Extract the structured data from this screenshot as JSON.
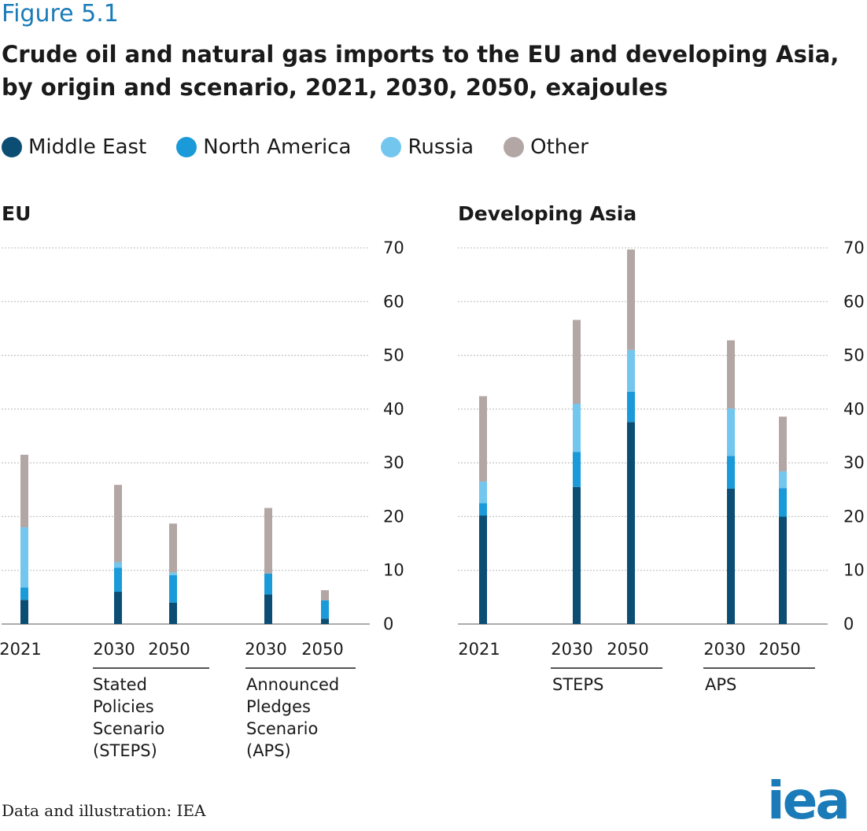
{
  "figure_label": "Figure 5.1",
  "title": "Crude oil and natural gas imports to the EU and developing Asia, by origin and scenario, 2021, 2030, 2050, exajoules",
  "legend": [
    {
      "name": "Middle East",
      "color": "#0c4d74"
    },
    {
      "name": "North America",
      "color": "#1a9ad8"
    },
    {
      "name": "Russia",
      "color": "#73c6ee"
    },
    {
      "name": "Other",
      "color": "#b3a7a5"
    }
  ],
  "source": "Data and illustration: IEA",
  "logo": "iea",
  "chart_data": [
    {
      "type": "bar",
      "stacked": true,
      "title": "EU",
      "categories": [
        "2021",
        "2030",
        "2050",
        "2030",
        "2050"
      ],
      "groups": [
        {
          "label": "",
          "categories": [
            "2021"
          ]
        },
        {
          "label": [
            "Stated",
            "Policies",
            "Scenario",
            "(STEPS)"
          ],
          "categories": [
            "2030",
            "2050"
          ]
        },
        {
          "label": [
            "Announced",
            "Pledges",
            "Scenario",
            "(APS)"
          ],
          "categories": [
            "2030",
            "2050"
          ]
        }
      ],
      "series": [
        {
          "name": "Middle East",
          "values": [
            4.5,
            6,
            4,
            5.5,
            1
          ]
        },
        {
          "name": "North America",
          "values": [
            2.3,
            4.5,
            5.1,
            3.9,
            3.4
          ]
        },
        {
          "name": "Russia",
          "values": [
            11.2,
            1,
            0.5,
            0,
            0
          ]
        },
        {
          "name": "Other",
          "values": [
            13.5,
            14.4,
            9.1,
            12.2,
            1.9
          ]
        }
      ],
      "ylim": [
        0,
        70
      ],
      "yticks": [
        0,
        10,
        20,
        30,
        40,
        50,
        60,
        70
      ],
      "ylabel": "",
      "xlabel": ""
    },
    {
      "type": "bar",
      "stacked": true,
      "title": "Developing Asia",
      "categories": [
        "2021",
        "2030",
        "2050",
        "2030",
        "2050"
      ],
      "groups": [
        {
          "label": "",
          "categories": [
            "2021"
          ]
        },
        {
          "label": [
            "STEPS"
          ],
          "categories": [
            "2030",
            "2050"
          ]
        },
        {
          "label": [
            "APS"
          ],
          "categories": [
            "2030",
            "2050"
          ]
        }
      ],
      "series": [
        {
          "name": "Middle East",
          "values": [
            20.2,
            25.5,
            37.6,
            25.2,
            20
          ]
        },
        {
          "name": "North America",
          "values": [
            2.3,
            6.5,
            5.6,
            6.1,
            5.3
          ]
        },
        {
          "name": "Russia",
          "values": [
            4,
            9,
            7.8,
            8.8,
            3.1
          ]
        },
        {
          "name": "Other",
          "values": [
            15.9,
            15.6,
            18.7,
            12.7,
            10.2
          ]
        }
      ],
      "ylim": [
        0,
        70
      ],
      "yticks": [
        0,
        10,
        20,
        30,
        40,
        50,
        60,
        70
      ],
      "ylabel": "",
      "xlabel": ""
    }
  ]
}
